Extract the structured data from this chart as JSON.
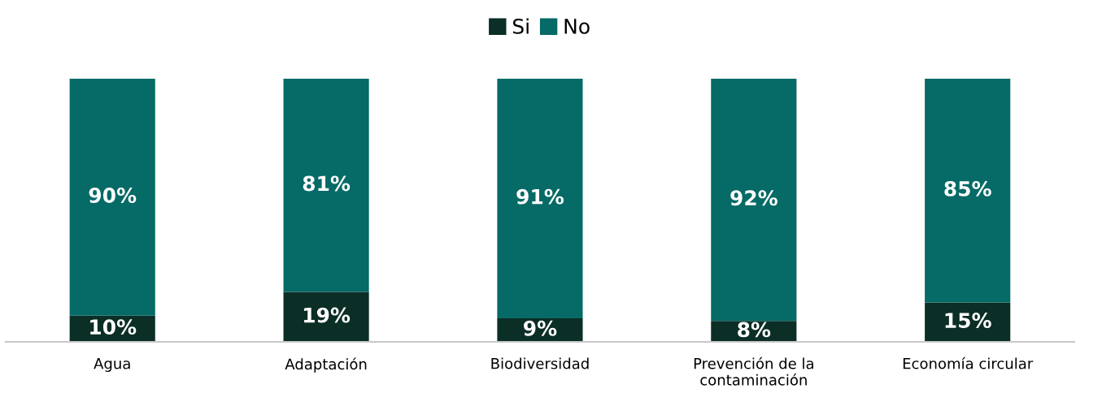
{
  "chart_data": {
    "type": "bar",
    "stacked": true,
    "legend": "top",
    "grid": false,
    "categories": [
      "Agua",
      "Adaptación",
      "Biodiversidad",
      "Prevención de la\ncontaminación",
      "Economía circular"
    ],
    "series": [
      {
        "name": "Si",
        "color": "#0b2e27",
        "values": [
          10,
          19,
          9,
          8,
          15
        ],
        "value_labels": [
          "10%",
          "19%",
          "9%",
          "8%",
          "15%"
        ]
      },
      {
        "name": "No",
        "color": "#066a66",
        "values": [
          90,
          81,
          91,
          92,
          85
        ],
        "value_labels": [
          "90%",
          "81%",
          "91%",
          "92%",
          "85%"
        ]
      }
    ]
  }
}
